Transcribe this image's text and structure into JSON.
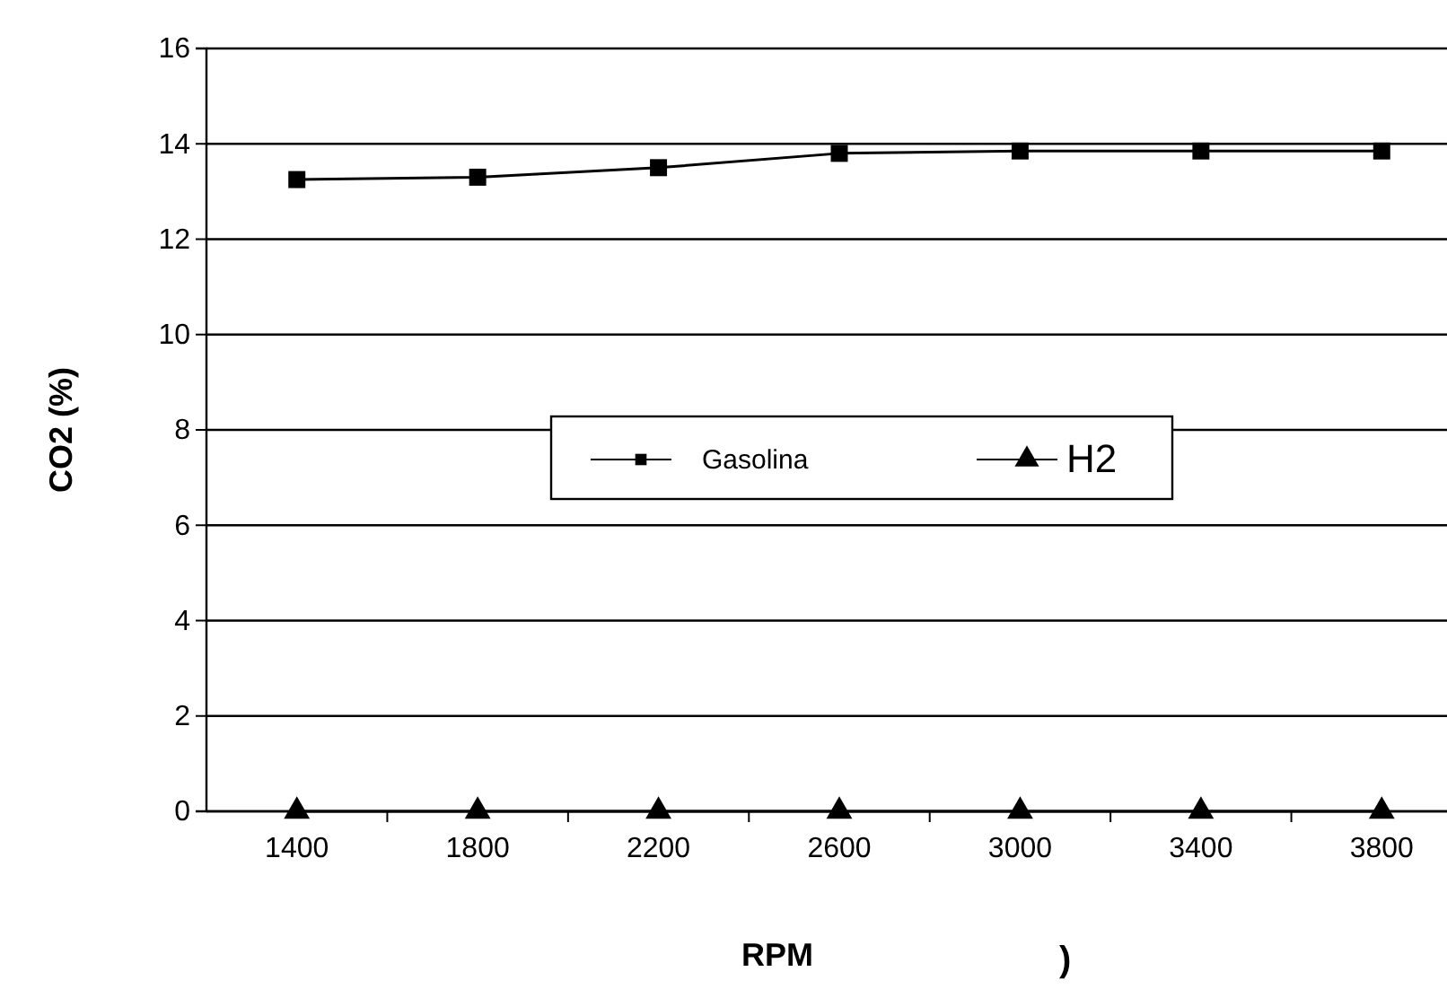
{
  "chart_data": {
    "type": "line",
    "xlabel": "RPM",
    "ylabel": "CO2 (%)",
    "categories": [
      "1400",
      "1800",
      "2200",
      "2600",
      "3000",
      "3400",
      "3800"
    ],
    "series": [
      {
        "name": "Gasolina",
        "color": "#000000",
        "marker": "square",
        "values": [
          13.25,
          13.3,
          13.5,
          13.8,
          13.85,
          13.85,
          13.85
        ]
      },
      {
        "name": "H2",
        "color": "#000000",
        "marker": "triangle",
        "values": [
          0,
          0,
          0,
          0,
          0,
          0,
          0
        ]
      }
    ],
    "ylim": [
      0,
      16
    ],
    "yticks": [
      0,
      2,
      4,
      6,
      8,
      10,
      12,
      14,
      16
    ],
    "grid": "y",
    "legend": "center",
    "annotations": [
      ")"
    ]
  }
}
